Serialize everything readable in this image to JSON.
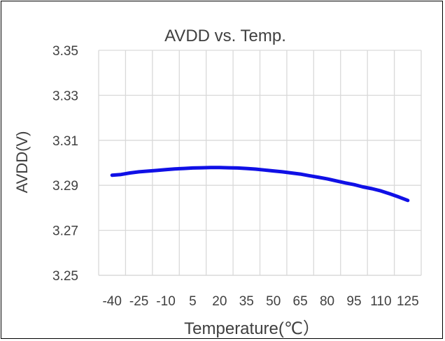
{
  "chart_data": {
    "type": "line",
    "title": "AVDD vs. Temp.",
    "xlabel": "Temperature(℃）",
    "ylabel": "AVDD(V)",
    "categories": [
      "-40",
      "-25",
      "-10",
      "5",
      "20",
      "35",
      "50",
      "65",
      "80",
      "95",
      "110",
      "125"
    ],
    "ylim": [
      3.25,
      3.35
    ],
    "yticks": [
      "3.25",
      "3.27",
      "3.29",
      "3.31",
      "3.33",
      "3.35"
    ],
    "grid": true,
    "series": [
      {
        "color": "#1010e6",
        "x": [
          -40,
          -35,
          -30,
          -25,
          -20,
          -15,
          -10,
          -5,
          0,
          5,
          10,
          15,
          20,
          25,
          30,
          35,
          40,
          45,
          50,
          55,
          60,
          65,
          70,
          75,
          80,
          85,
          90,
          95,
          100,
          105,
          110,
          115,
          120,
          125
        ],
        "values": [
          3.2945,
          3.2948,
          3.2955,
          3.296,
          3.2963,
          3.2966,
          3.297,
          3.2973,
          3.2975,
          3.2977,
          3.2978,
          3.2979,
          3.2979,
          3.2978,
          3.2977,
          3.2975,
          3.2972,
          3.2968,
          3.2964,
          3.296,
          3.2955,
          3.295,
          3.2943,
          3.2936,
          3.2929,
          3.292,
          3.2911,
          3.2903,
          3.2893,
          3.2885,
          3.2875,
          3.2862,
          3.2848,
          3.2833
        ]
      }
    ]
  }
}
